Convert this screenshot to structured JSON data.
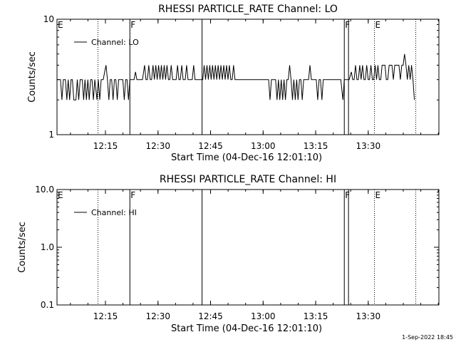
{
  "footer_timestamp": "1-Sep-2022 18:45",
  "chart_data": [
    {
      "type": "line",
      "title": "RHESSI PARTICLE_RATE Channel: LO",
      "xlabel": "Start Time (04-Dec-16 12:01:10)",
      "ylabel": "Counts/sec",
      "yscale": "log",
      "ylim": [
        1,
        10
      ],
      "ytick_labels": [
        "1",
        "10"
      ],
      "xlim_minutes_from_start": [
        0,
        109
      ],
      "xtick_labels": [
        "12:15",
        "12:30",
        "12:45",
        "13:00",
        "13:15",
        "13:30"
      ],
      "xtick_minutes_from_start": [
        13.83,
        28.83,
        43.83,
        58.83,
        73.83,
        88.83
      ],
      "legend": {
        "entry": "Channel: LO",
        "placement": "top-left"
      },
      "event_markers": [
        {
          "label": "E",
          "t": 0,
          "style": "solid"
        },
        {
          "label": "",
          "t": 11.7,
          "style": "dotted"
        },
        {
          "label": "F",
          "t": 20.8,
          "style": "solid"
        },
        {
          "label": "",
          "t": 41.4,
          "style": "solid"
        },
        {
          "label": "F",
          "t": 82.0,
          "style": "solid"
        },
        {
          "label": "",
          "t": 83.2,
          "style": "solid"
        },
        {
          "label": "E",
          "t": 90.6,
          "style": "dotted"
        },
        {
          "label": "",
          "t": 102.4,
          "style": "dotted"
        }
      ],
      "series": [
        {
          "values": [
            [
              0,
              3
            ],
            [
              0.6,
              3
            ],
            [
              1,
              3
            ],
            [
              1.4,
              2
            ],
            [
              1.8,
              3
            ],
            [
              2.4,
              3
            ],
            [
              2.8,
              2
            ],
            [
              3.2,
              3
            ],
            [
              3.6,
              2
            ],
            [
              4.0,
              3
            ],
            [
              4.4,
              3
            ],
            [
              4.8,
              2
            ],
            [
              5.4,
              2
            ],
            [
              5.8,
              3
            ],
            [
              6.2,
              2
            ],
            [
              6.6,
              3
            ],
            [
              7.2,
              3
            ],
            [
              7.6,
              2
            ],
            [
              8.0,
              3
            ],
            [
              8.4,
              2
            ],
            [
              8.8,
              3
            ],
            [
              9.2,
              2
            ],
            [
              9.6,
              3
            ],
            [
              10.0,
              3
            ],
            [
              10.4,
              2
            ],
            [
              10.8,
              3
            ],
            [
              11.4,
              2
            ],
            [
              11.8,
              3
            ],
            [
              12.2,
              2
            ],
            [
              12.6,
              3
            ],
            [
              13.2,
              3
            ],
            [
              13.6,
              3.5
            ],
            [
              14.0,
              4
            ],
            [
              14.4,
              3
            ],
            [
              14.8,
              2
            ],
            [
              15.2,
              3
            ],
            [
              15.6,
              3
            ],
            [
              16.0,
              2
            ],
            [
              16.4,
              3
            ],
            [
              16.8,
              3
            ],
            [
              17.2,
              2
            ],
            [
              17.6,
              3
            ],
            [
              18.0,
              3
            ],
            [
              18.8,
              3
            ],
            [
              19.2,
              2
            ],
            [
              19.6,
              3
            ],
            [
              20.0,
              3
            ],
            [
              20.4,
              2
            ],
            [
              20.8,
              3
            ],
            [
              21.2,
              3
            ],
            [
              22.0,
              3
            ],
            [
              22.4,
              3.5
            ],
            [
              22.8,
              3
            ],
            [
              23.6,
              3
            ],
            [
              24.0,
              3
            ],
            [
              24.4,
              3
            ],
            [
              25.0,
              4
            ],
            [
              25.4,
              3
            ],
            [
              25.8,
              3
            ],
            [
              26.2,
              4
            ],
            [
              26.6,
              3
            ],
            [
              27.0,
              3
            ],
            [
              27.4,
              4
            ],
            [
              27.8,
              3
            ],
            [
              28.2,
              4
            ],
            [
              28.6,
              3
            ],
            [
              29.0,
              4
            ],
            [
              29.4,
              3
            ],
            [
              29.8,
              4
            ],
            [
              30.2,
              3
            ],
            [
              30.6,
              4
            ],
            [
              31.0,
              3
            ],
            [
              31.4,
              4
            ],
            [
              31.8,
              3
            ],
            [
              32.2,
              3
            ],
            [
              32.6,
              4
            ],
            [
              33.0,
              3
            ],
            [
              33.4,
              3
            ],
            [
              34.0,
              3
            ],
            [
              34.4,
              4
            ],
            [
              34.8,
              3
            ],
            [
              35.2,
              3
            ],
            [
              35.6,
              4
            ],
            [
              36.0,
              3
            ],
            [
              36.6,
              3
            ],
            [
              37.0,
              4
            ],
            [
              37.4,
              3
            ],
            [
              37.8,
              3
            ],
            [
              38.6,
              3
            ],
            [
              39.0,
              4
            ],
            [
              39.4,
              3
            ],
            [
              40.2,
              3
            ],
            [
              41.0,
              3
            ],
            [
              41.6,
              3
            ],
            [
              42.0,
              4
            ],
            [
              42.4,
              3
            ],
            [
              42.8,
              4
            ],
            [
              43.2,
              3
            ],
            [
              43.6,
              4
            ],
            [
              44.0,
              3
            ],
            [
              44.4,
              4
            ],
            [
              44.8,
              3
            ],
            [
              45.2,
              4
            ],
            [
              45.6,
              3
            ],
            [
              46.0,
              4
            ],
            [
              46.4,
              3
            ],
            [
              46.8,
              4
            ],
            [
              47.2,
              3
            ],
            [
              47.6,
              4
            ],
            [
              48.0,
              3
            ],
            [
              48.4,
              4
            ],
            [
              48.8,
              3
            ],
            [
              49.2,
              4
            ],
            [
              49.6,
              3
            ],
            [
              50.0,
              3
            ],
            [
              50.4,
              4
            ],
            [
              50.8,
              3
            ],
            [
              51.4,
              3
            ],
            [
              52.0,
              3
            ],
            [
              55.0,
              3
            ],
            [
              56.0,
              3
            ],
            [
              58.0,
              3
            ],
            [
              60.4,
              3
            ],
            [
              60.8,
              2
            ],
            [
              61.2,
              3
            ],
            [
              61.6,
              3
            ],
            [
              62.4,
              3
            ],
            [
              62.8,
              2
            ],
            [
              63.2,
              3
            ],
            [
              63.6,
              2
            ],
            [
              64.0,
              3
            ],
            [
              64.4,
              2
            ],
            [
              64.8,
              3
            ],
            [
              65.2,
              2
            ],
            [
              65.6,
              3
            ],
            [
              66.0,
              3
            ],
            [
              66.4,
              4
            ],
            [
              66.8,
              3
            ],
            [
              67.2,
              2
            ],
            [
              67.6,
              3
            ],
            [
              68.0,
              2
            ],
            [
              68.4,
              3
            ],
            [
              68.8,
              2
            ],
            [
              69.2,
              3
            ],
            [
              69.6,
              3
            ],
            [
              70.0,
              2
            ],
            [
              70.4,
              3
            ],
            [
              71.0,
              3
            ],
            [
              71.8,
              3
            ],
            [
              72.2,
              4
            ],
            [
              72.6,
              3
            ],
            [
              73.0,
              3
            ],
            [
              73.4,
              3
            ],
            [
              74.0,
              3
            ],
            [
              74.4,
              2
            ],
            [
              74.8,
              3
            ],
            [
              75.2,
              3
            ],
            [
              75.6,
              2
            ],
            [
              76.0,
              3
            ],
            [
              76.8,
              3
            ],
            [
              77.4,
              3
            ],
            [
              78.2,
              3
            ],
            [
              79.0,
              3
            ],
            [
              79.8,
              3
            ],
            [
              80.4,
              3
            ],
            [
              81.0,
              3
            ],
            [
              81.6,
              2
            ],
            [
              82.0,
              3
            ],
            [
              82.6,
              3
            ],
            [
              83.4,
              3
            ],
            [
              84.0,
              3.5
            ],
            [
              84.4,
              3
            ],
            [
              84.8,
              3
            ],
            [
              85.2,
              4
            ],
            [
              85.6,
              3
            ],
            [
              86.0,
              3
            ],
            [
              86.4,
              4
            ],
            [
              86.8,
              3
            ],
            [
              87.2,
              4
            ],
            [
              87.6,
              3
            ],
            [
              88.0,
              3
            ],
            [
              88.4,
              4
            ],
            [
              88.8,
              3
            ],
            [
              89.2,
              3
            ],
            [
              89.6,
              4
            ],
            [
              90.0,
              3
            ],
            [
              90.4,
              3
            ],
            [
              90.8,
              4
            ],
            [
              91.2,
              3
            ],
            [
              91.6,
              4
            ],
            [
              92.0,
              3
            ],
            [
              92.4,
              3
            ],
            [
              92.8,
              4
            ],
            [
              93.2,
              4
            ],
            [
              93.6,
              4
            ],
            [
              94.0,
              3
            ],
            [
              94.4,
              3
            ],
            [
              94.8,
              4
            ],
            [
              95.2,
              4
            ],
            [
              95.6,
              4
            ],
            [
              96.0,
              3
            ],
            [
              96.4,
              4
            ],
            [
              96.8,
              4
            ],
            [
              97.2,
              4
            ],
            [
              97.6,
              4
            ],
            [
              98.0,
              3
            ],
            [
              98.4,
              4
            ],
            [
              98.8,
              4
            ],
            [
              99.2,
              5
            ],
            [
              99.6,
              4
            ],
            [
              100.0,
              3
            ],
            [
              100.4,
              4
            ],
            [
              100.8,
              3
            ],
            [
              101.2,
              4
            ],
            [
              101.6,
              3
            ],
            [
              102.0,
              2
            ]
          ]
        }
      ]
    },
    {
      "type": "line",
      "title": "RHESSI PARTICLE_RATE Channel: HI",
      "xlabel": "Start Time (04-Dec-16 12:01:10)",
      "ylabel": "Counts/sec",
      "yscale": "log",
      "ylim": [
        0.1,
        10
      ],
      "ytick_labels": [
        "0.1",
        "1.0",
        "10.0"
      ],
      "xlim_minutes_from_start": [
        0,
        109
      ],
      "xtick_labels": [
        "12:15",
        "12:30",
        "12:45",
        "13:00",
        "13:15",
        "13:30"
      ],
      "xtick_minutes_from_start": [
        13.83,
        28.83,
        43.83,
        58.83,
        73.83,
        88.83
      ],
      "legend": {
        "entry": "Channel: HI",
        "placement": "top-left"
      },
      "event_markers": [
        {
          "label": "E",
          "t": 0,
          "style": "solid"
        },
        {
          "label": "",
          "t": 11.7,
          "style": "dotted"
        },
        {
          "label": "F",
          "t": 20.8,
          "style": "solid"
        },
        {
          "label": "",
          "t": 41.4,
          "style": "solid"
        },
        {
          "label": "F",
          "t": 82.0,
          "style": "solid"
        },
        {
          "label": "",
          "t": 83.2,
          "style": "solid"
        },
        {
          "label": "E",
          "t": 90.6,
          "style": "dotted"
        },
        {
          "label": "",
          "t": 102.4,
          "style": "dotted"
        }
      ],
      "series": [
        {
          "values": []
        }
      ]
    }
  ]
}
